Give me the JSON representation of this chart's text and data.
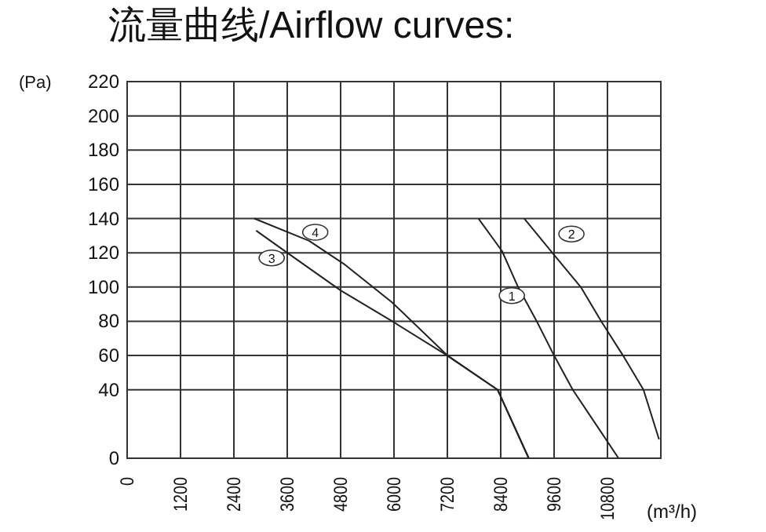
{
  "chart_data": {
    "type": "line",
    "title": "流量曲线/Airflow curves:",
    "xlabel": "(m³/h)",
    "ylabel": "(Pa)",
    "xlim": [
      0,
      12000
    ],
    "xticks": [
      0,
      1200,
      2400,
      3600,
      4800,
      6000,
      7200,
      8400,
      9600,
      10800
    ],
    "ylim": [
      0,
      220
    ],
    "yticks": [
      0,
      40,
      60,
      80,
      100,
      120,
      140,
      160,
      180,
      200,
      220
    ],
    "grid": true,
    "series": [
      {
        "color": "#222222",
        "x": [
          7900,
          8430,
          8790,
          9210,
          9600,
          10020,
          11050
        ],
        "values": [
          140,
          121,
          100,
          80,
          60,
          40,
          0
        ]
      },
      {
        "color": "#222222",
        "x": [
          8930,
          9560,
          10200,
          10660,
          11150,
          11610,
          11960
        ],
        "values": [
          140,
          120,
          100,
          80,
          60,
          40,
          11
        ]
      },
      {
        "color": "#222222",
        "x": [
          2900,
          3600,
          4800,
          5960,
          7200,
          8330,
          9030
        ],
        "values": [
          133,
          120,
          98,
          80,
          60,
          40,
          0
        ]
      },
      {
        "color": "#222222",
        "x": [
          2860,
          4090,
          4900,
          5960,
          7200,
          8330,
          9030
        ],
        "values": [
          140,
          127,
          113,
          91,
          60,
          40,
          0
        ]
      }
    ],
    "annotations": [
      {
        "text": "1",
        "x": 8650,
        "y": 95
      },
      {
        "text": "2",
        "x": 9990,
        "y": 131
      },
      {
        "text": "3",
        "x": 3250,
        "y": 117
      },
      {
        "text": "4",
        "x": 4230,
        "y": 132
      }
    ]
  }
}
